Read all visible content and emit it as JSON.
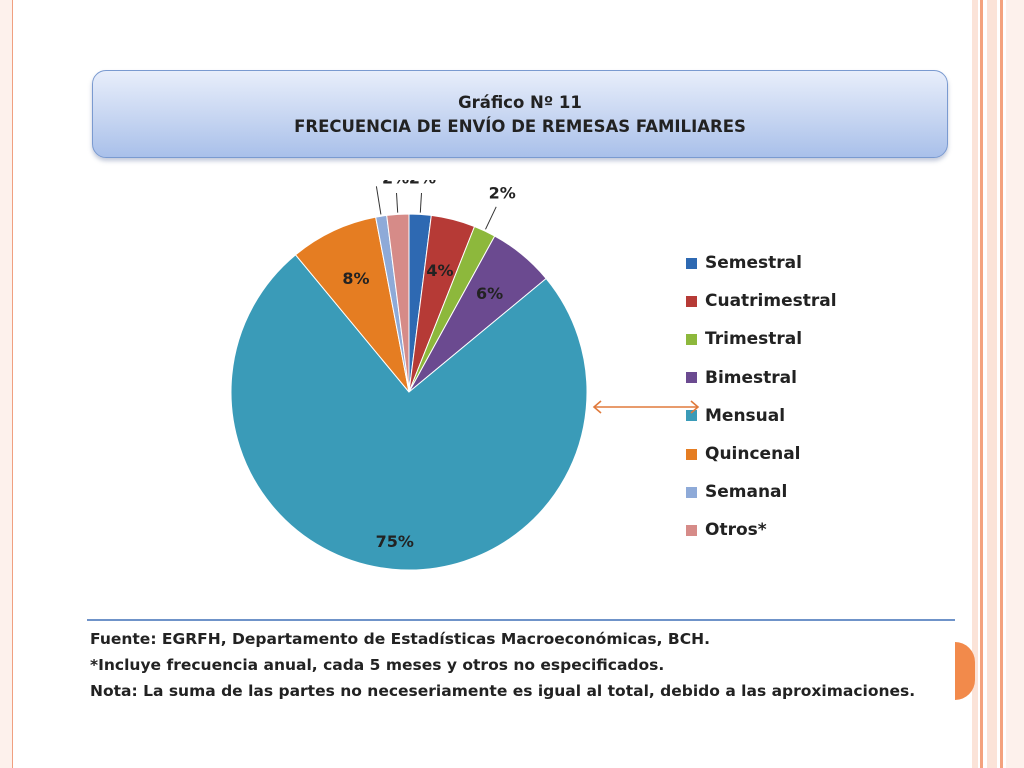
{
  "slide": {
    "title_line1": "Gráfico Nº 11",
    "title_line2": "FRECUENCIA DE ENVÍO DE REMESAS FAMILIARES"
  },
  "footer": {
    "source": "Fuente: EGRFH, Departamento de Estadísticas Macroeconómicas, BCH.",
    "footnote": "*Incluye frecuencia anual, cada 5 meses y otros no especificados.",
    "note": "Nota: La suma de las partes no neceseriamente es igual al total, debido a las aproximaciones."
  },
  "colors": {
    "frame_accent": "#f28a4b",
    "title_border": "#7a9ad0",
    "arrow": "#e07a3c",
    "footer_rule": "#6f93c9"
  },
  "chart_data": {
    "type": "pie",
    "title": "",
    "legend_position": "right",
    "slices": [
      {
        "label": "Semestral",
        "value": 2,
        "display": "2%",
        "color": "#2e69b2"
      },
      {
        "label": "Cuatrimestral",
        "value": 4,
        "display": "4%",
        "color": "#b63a36"
      },
      {
        "label": "Trimestral",
        "value": 2,
        "display": "2%",
        "color": "#8db83c"
      },
      {
        "label": "Bimestral",
        "value": 6,
        "display": "6%",
        "color": "#6b4a90"
      },
      {
        "label": "Mensual",
        "value": 75,
        "display": "75%",
        "color": "#3a9bb8"
      },
      {
        "label": "Quincenal",
        "value": 8,
        "display": "8%",
        "color": "#e57d22"
      },
      {
        "label": "Semanal",
        "value": 1,
        "display": "1%",
        "color": "#8eaad8"
      },
      {
        "label": "Otros*",
        "value": 2,
        "display": "2%",
        "color": "#d68b88"
      }
    ],
    "highlighted_slice": "Mensual"
  }
}
